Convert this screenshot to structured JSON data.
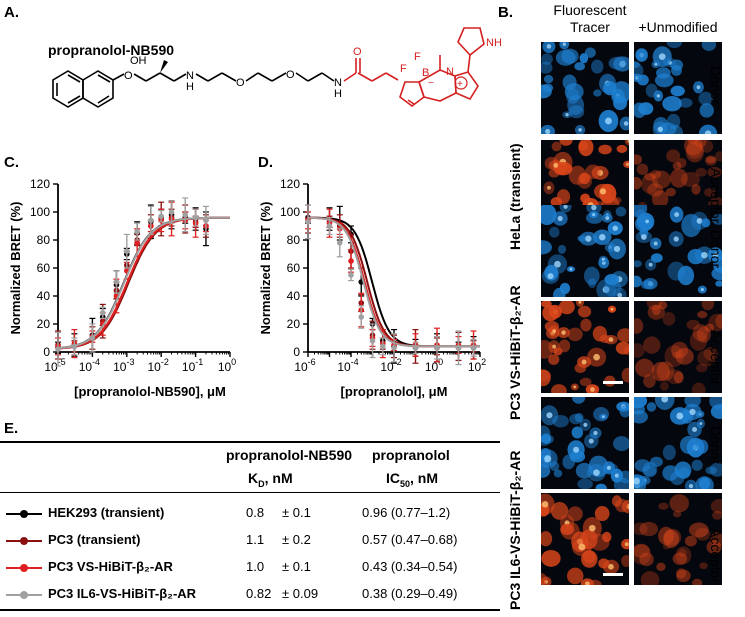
{
  "panel_a": {
    "letter": "A.",
    "compound_name": "propranolol-NB590",
    "atoms": {
      "oh": "OH",
      "h": "H",
      "n": "N",
      "o1": "O",
      "o2": "O",
      "o3": "O",
      "nh_amide": "N",
      "h_amide": "H",
      "o_carbonyl": "O",
      "f1": "F",
      "f2": "F",
      "b": "B",
      "n_ring": "N",
      "nh_pyrrole": "NH",
      "minus": "−",
      "plus": "+"
    },
    "colors": {
      "tracer": "#d42020",
      "black": "#000000"
    }
  },
  "panel_b": {
    "letter": "B.",
    "col_headers": {
      "col1_line1": "Fluorescent",
      "col1_line2": "Tracer",
      "col2": "+Unmodified"
    },
    "groups": [
      {
        "label": "HeLa (transient)",
        "rows": [
          "Donor",
          "Acceptor"
        ]
      },
      {
        "label": "PC3 VS-HiBiT-β₂-AR",
        "rows": [
          "Donor",
          "Acceptor"
        ]
      },
      {
        "label": "PC3 IL6-VS-HiBiT-β₂-AR",
        "rows": [
          "Donor",
          "Acceptor"
        ]
      }
    ],
    "colors": {
      "donor": "#1e7fd0",
      "acceptor": "#d8451a"
    }
  },
  "chart_data": [
    {
      "panel": "C.",
      "type": "line",
      "xlabel": "[propranolol-NB590], μM",
      "ylabel": "Normalized BRET (%)",
      "xscale": "log",
      "xlim": [
        1e-05,
        1
      ],
      "ylim": [
        0,
        120
      ],
      "yticks": [
        0,
        20,
        40,
        60,
        80,
        100,
        120
      ],
      "xtick_labels": [
        "10",
        "-5",
        "10",
        "-4",
        "10",
        "-3",
        "10",
        "-2",
        "10",
        "-1",
        "10",
        "0"
      ],
      "x": [
        1e-05,
        3e-05,
        0.0001,
        0.0002,
        0.0005,
        0.001,
        0.002,
        0.005,
        0.01,
        0.02,
        0.05,
        0.1,
        0.2
      ],
      "series": [
        {
          "name": "HEK293 (transient)",
          "color": "#000000",
          "values": [
            3,
            5,
            12,
            25,
            48,
            70,
            85,
            93,
            96,
            98,
            96,
            95,
            88
          ],
          "ec": 0.0008
        },
        {
          "name": "PC3 (transient)",
          "color": "#8a1010",
          "values": [
            5,
            4,
            10,
            22,
            44,
            62,
            80,
            90,
            95,
            96,
            95,
            93,
            90
          ],
          "ec": 0.0011
        },
        {
          "name": "PC3 VS-HiBiT-β₂-AR",
          "color": "#e02020",
          "values": [
            4,
            6,
            11,
            20,
            40,
            58,
            78,
            90,
            94,
            95,
            94,
            92,
            90
          ],
          "ec": 0.001
        },
        {
          "name": "PC3 IL6-VS-HiBiT-β₂-AR",
          "color": "#a0a0a0",
          "values": [
            2,
            4,
            10,
            28,
            50,
            72,
            86,
            94,
            97,
            100,
            98,
            96,
            94
          ],
          "ec": 0.00082
        }
      ]
    },
    {
      "panel": "D.",
      "type": "line",
      "xlabel": "[propranolol], μM",
      "ylabel": "Normalized BRET (%)",
      "xscale": "log",
      "xlim": [
        1e-06,
        100
      ],
      "ylim": [
        0,
        120
      ],
      "yticks": [
        0,
        20,
        40,
        60,
        80,
        100,
        120
      ],
      "xtick_labels": [
        "10",
        "-6",
        "10",
        "-4",
        "10",
        "-2",
        "10",
        "0",
        "10",
        "2"
      ],
      "x": [
        1e-06,
        1e-05,
        3e-05,
        0.0001,
        0.0003,
        0.001,
        0.003,
        0.01,
        0.1,
        1,
        10,
        50
      ],
      "series": [
        {
          "name": "HEK293 (transient)",
          "color": "#000000",
          "values": [
            96,
            95,
            92,
            84,
            50,
            20,
            8,
            4,
            3,
            3,
            3,
            3
          ],
          "ic": 0.00096
        },
        {
          "name": "PC3 (transient)",
          "color": "#8a1010",
          "values": [
            95,
            93,
            90,
            72,
            35,
            12,
            6,
            4,
            4,
            4,
            4,
            4
          ],
          "ic": 0.00057
        },
        {
          "name": "PC3 VS-HiBiT-β₂-AR",
          "color": "#e02020",
          "values": [
            94,
            92,
            88,
            65,
            30,
            10,
            6,
            5,
            5,
            5,
            5,
            5
          ],
          "ic": 0.00043
        },
        {
          "name": "PC3 IL6-VS-HiBiT-β₂-AR",
          "color": "#a0a0a0",
          "values": [
            93,
            90,
            78,
            55,
            25,
            8,
            4,
            3,
            3,
            3,
            3,
            3
          ],
          "ic": 0.00038
        }
      ]
    }
  ],
  "panel_e": {
    "letter": "E.",
    "col1_title": "propranolol-NB590",
    "col1_sub": "K",
    "col1_sub_subscript": "D",
    "col1_sub_unit": ", nM",
    "col2_title": "propranolol",
    "col2_sub": "IC",
    "col2_sub_subscript": "50",
    "col2_sub_unit": ", nM",
    "rows": [
      {
        "name": "HEK293 (transient)",
        "kd": "0.8",
        "kd_err": "± 0.1",
        "ic50": "0.96 (0.77–1.2)",
        "color": "#000000"
      },
      {
        "name": "PC3 (transient)",
        "kd": "1.1",
        "kd_err": "± 0.2",
        "ic50": "0.57 (0.47–0.68)",
        "color": "#8a1010"
      },
      {
        "name": "PC3 VS-HiBiT-β₂-AR",
        "kd": "1.0",
        "kd_err": "± 0.1",
        "ic50": "0.43 (0.34–0.54)",
        "color": "#e02020"
      },
      {
        "name": "PC3 IL6-VS-HiBiT-β₂-AR",
        "kd": "0.82",
        "kd_err": "± 0.09",
        "ic50": "0.38 (0.29–0.49)",
        "color": "#a0a0a0"
      }
    ]
  }
}
